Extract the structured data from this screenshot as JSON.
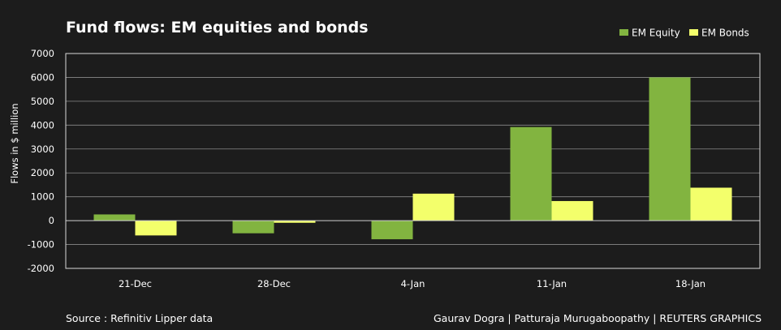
{
  "title": "Fund flows: EM equities and bonds",
  "source": "Source : Refinitiv Lipper data",
  "credits": "Gaurav Dogra | Patturaja Murugaboopathy | REUTERS GRAPHICS",
  "colors": {
    "background": "#1c1c1c",
    "plot_border": "#d9d9d9",
    "grid": "#8a8a8a",
    "zero_line": "#cfcfcf",
    "equity": "#82b440",
    "bonds": "#f3ff6b"
  },
  "chart_data": {
    "type": "bar",
    "title": "Fund flows: EM equities and bonds",
    "xlabel": "",
    "ylabel": "Flows in $ million",
    "ylim": [
      -2000,
      7000
    ],
    "yticks": [
      7000,
      6000,
      5000,
      4000,
      3000,
      2000,
      1000,
      0,
      -1000,
      -2000
    ],
    "grid": true,
    "legend_position": "top-right",
    "categories": [
      "21-Dec",
      "28-Dec",
      "4-Jan",
      "11-Jan",
      "18-Jan"
    ],
    "series": [
      {
        "name": "EM Equity",
        "color": "#82b440",
        "values": [
          260,
          -530,
          -780,
          3920,
          6000
        ]
      },
      {
        "name": "EM Bonds",
        "color": "#f3ff6b",
        "values": [
          -620,
          -90,
          1130,
          820,
          1380
        ]
      }
    ]
  }
}
